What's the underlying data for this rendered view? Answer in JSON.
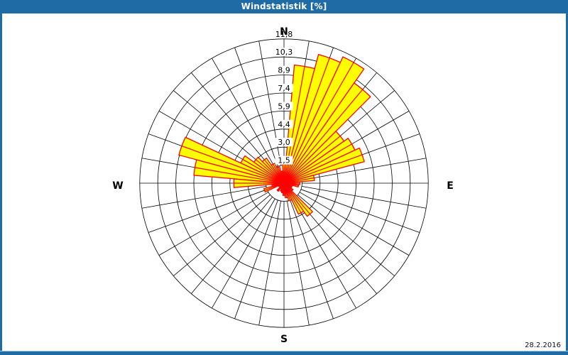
{
  "window": {
    "title": "Windstatistik [%]"
  },
  "date_label": "28.2.2016",
  "chart_data": {
    "type": "wind-rose",
    "title": "Windstatistik [%]",
    "units": "%",
    "legend": "none",
    "grid": "polar, 8 rings, radial spokes every 10 degrees, inner circle empty",
    "compass": {
      "n": "N",
      "e": "E",
      "s": "S",
      "w": "W"
    },
    "ring_labels": [
      "1,5",
      "3,0",
      "4,4",
      "5,9",
      "7,4",
      "8,9",
      "10,3",
      "11,8"
    ],
    "ring_values": [
      1.5,
      3.0,
      4.4,
      5.9,
      7.4,
      8.9,
      10.3,
      11.8
    ],
    "max_value": 11.8,
    "sector_width_deg": 10,
    "directions_deg": [
      0,
      10,
      20,
      30,
      40,
      50,
      60,
      70,
      80,
      90,
      100,
      110,
      120,
      130,
      140,
      150,
      160,
      170,
      180,
      190,
      200,
      210,
      220,
      230,
      240,
      250,
      260,
      270,
      280,
      290,
      300,
      310,
      320,
      330,
      340,
      350
    ],
    "frequencies_pct": [
      2.0,
      9.7,
      10.9,
      11.4,
      10.0,
      6.0,
      6.4,
      6.8,
      2.5,
      1.3,
      1.2,
      0.7,
      0.7,
      0.9,
      3.3,
      2.8,
      1.5,
      1.2,
      1.0,
      0.8,
      0.7,
      0.5,
      0.8,
      0.4,
      0.5,
      1.7,
      1.0,
      4.1,
      7.4,
      8.9,
      3.9,
      3.0,
      2.5,
      1.8,
      1.4,
      1.0
    ],
    "colors": {
      "petal_fill": "#ffff00",
      "petal_stroke": "#ff0000",
      "grid": "#000000",
      "titlebar": "#1f6ba6",
      "background": "#ffffff",
      "label_text": "#000000"
    }
  }
}
